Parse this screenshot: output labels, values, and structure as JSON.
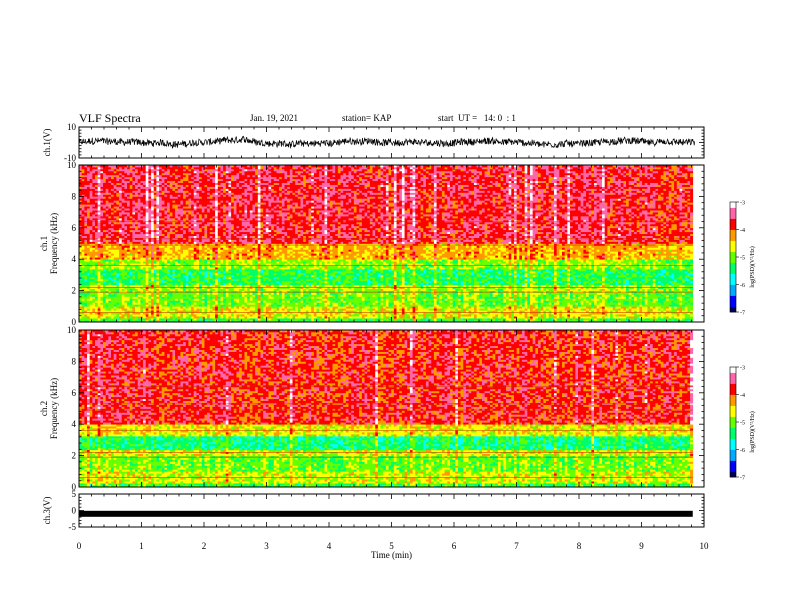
{
  "header": {
    "title": "VLF Spectra",
    "date": "Jan. 19, 2021",
    "station": "station= KAP",
    "start": "start  UT =   14: 0  : 1"
  },
  "colors": {
    "spectrogram_scale": [
      "#000055",
      "#0000ff",
      "#00aaff",
      "#00ffff",
      "#00ff66",
      "#66ff00",
      "#ffff00",
      "#ff9900",
      "#ff0000",
      "#ff66aa",
      "#ffffff"
    ],
    "trace": "#000000"
  },
  "chart_data": [
    {
      "type": "line",
      "name_label": "ch.1(V)",
      "ylim": [
        -10,
        10
      ],
      "yticks": [
        "10",
        "-10"
      ],
      "xlim": [
        0,
        10
      ],
      "description_values": "noisy waveform around ~0 V, amplitude ~±3 V"
    },
    {
      "type": "heatmap",
      "ylabel": "ch.1\nFrequency (kHz)",
      "ylabel_lines": [
        "ch.1",
        "Frequency (kHz)"
      ],
      "ylim": [
        0,
        10
      ],
      "yticks": [
        "0",
        "2",
        "4",
        "6",
        "8",
        "10"
      ],
      "xlim": [
        0,
        9.8
      ],
      "colorbar": {
        "label": "log(PSD)(V²/Hz)",
        "min": -7,
        "max": -3,
        "ticks": [
          "-3",
          "-4",
          "-5",
          "-6",
          "-7"
        ]
      },
      "bands": [
        {
          "from_khz": 0.0,
          "to_khz": 0.3,
          "level": -5.2
        },
        {
          "from_khz": 0.3,
          "to_khz": 1.0,
          "level": -4.6
        },
        {
          "from_khz": 1.0,
          "to_khz": 2.0,
          "level": -5.0
        },
        {
          "from_khz": 2.0,
          "to_khz": 2.4,
          "level": -4.8
        },
        {
          "from_khz": 2.4,
          "to_khz": 3.4,
          "level": -5.3
        },
        {
          "from_khz": 3.4,
          "to_khz": 4.0,
          "level": -4.9
        },
        {
          "from_khz": 4.0,
          "to_khz": 5.0,
          "level": -4.3
        },
        {
          "from_khz": 5.0,
          "to_khz": 10.0,
          "level": -3.7
        }
      ]
    },
    {
      "type": "heatmap",
      "ylabel_lines": [
        "ch.2",
        "Frequency (kHz)"
      ],
      "ylim": [
        0,
        10
      ],
      "yticks": [
        "0",
        "2",
        "4",
        "6",
        "8",
        "10"
      ],
      "xlim": [
        0,
        9.8
      ],
      "colorbar": {
        "label": "log(PSD)(V²/Hz)",
        "min": -7,
        "max": -3,
        "ticks": [
          "-3",
          "-4",
          "-5",
          "-6",
          "-7"
        ]
      },
      "bands": [
        {
          "from_khz": 0.0,
          "to_khz": 0.3,
          "level": -5.2
        },
        {
          "from_khz": 0.3,
          "to_khz": 1.0,
          "level": -4.7
        },
        {
          "from_khz": 1.0,
          "to_khz": 2.0,
          "level": -5.0
        },
        {
          "from_khz": 2.0,
          "to_khz": 2.4,
          "level": -4.7
        },
        {
          "from_khz": 2.4,
          "to_khz": 3.3,
          "level": -5.4
        },
        {
          "from_khz": 3.3,
          "to_khz": 4.0,
          "level": -4.6
        },
        {
          "from_khz": 4.0,
          "to_khz": 10.0,
          "level": -3.8
        }
      ]
    },
    {
      "type": "line",
      "name_label": "ch.3(V)",
      "ylim": [
        -5,
        5
      ],
      "yticks": [
        "5",
        "0",
        "-5"
      ],
      "xlim": [
        0,
        10
      ],
      "constant_value": -1.0
    }
  ],
  "xaxis": {
    "label": "Time (min)",
    "ticks": [
      "0",
      "1",
      "2",
      "3",
      "4",
      "5",
      "6",
      "7",
      "8",
      "9",
      "10"
    ]
  }
}
